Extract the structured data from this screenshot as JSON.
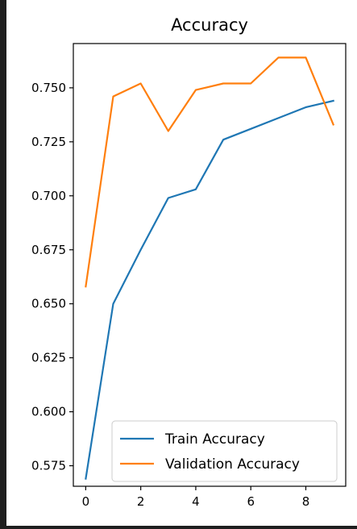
{
  "chart_data": {
    "type": "line",
    "title": "Accuracy",
    "xlabel": "",
    "ylabel": "",
    "x": [
      0,
      1,
      2,
      3,
      4,
      5,
      6,
      7,
      8,
      9
    ],
    "xlim": [
      -0.45,
      9.45
    ],
    "ylim": [
      0.5655,
      0.7705
    ],
    "x_ticks": [
      0,
      2,
      4,
      6,
      8
    ],
    "y_ticks": [
      0.575,
      0.6,
      0.625,
      0.65,
      0.675,
      0.7,
      0.725,
      0.75
    ],
    "x_tick_labels": [
      "0",
      "2",
      "4",
      "6",
      "8"
    ],
    "y_tick_labels": [
      "0.575",
      "0.600",
      "0.625",
      "0.650",
      "0.675",
      "0.700",
      "0.725",
      "0.750"
    ],
    "grid": false,
    "legend_position": "lower-right",
    "series": [
      {
        "name": "Train Accuracy",
        "color": "#1f77b4",
        "values": [
          0.569,
          0.65,
          0.675,
          0.699,
          0.703,
          0.726,
          0.731,
          0.736,
          0.741,
          0.744
        ]
      },
      {
        "name": "Validation Accuracy",
        "color": "#ff7f0e",
        "values": [
          0.658,
          0.746,
          0.752,
          0.73,
          0.749,
          0.752,
          0.752,
          0.764,
          0.764,
          0.733
        ]
      }
    ]
  }
}
